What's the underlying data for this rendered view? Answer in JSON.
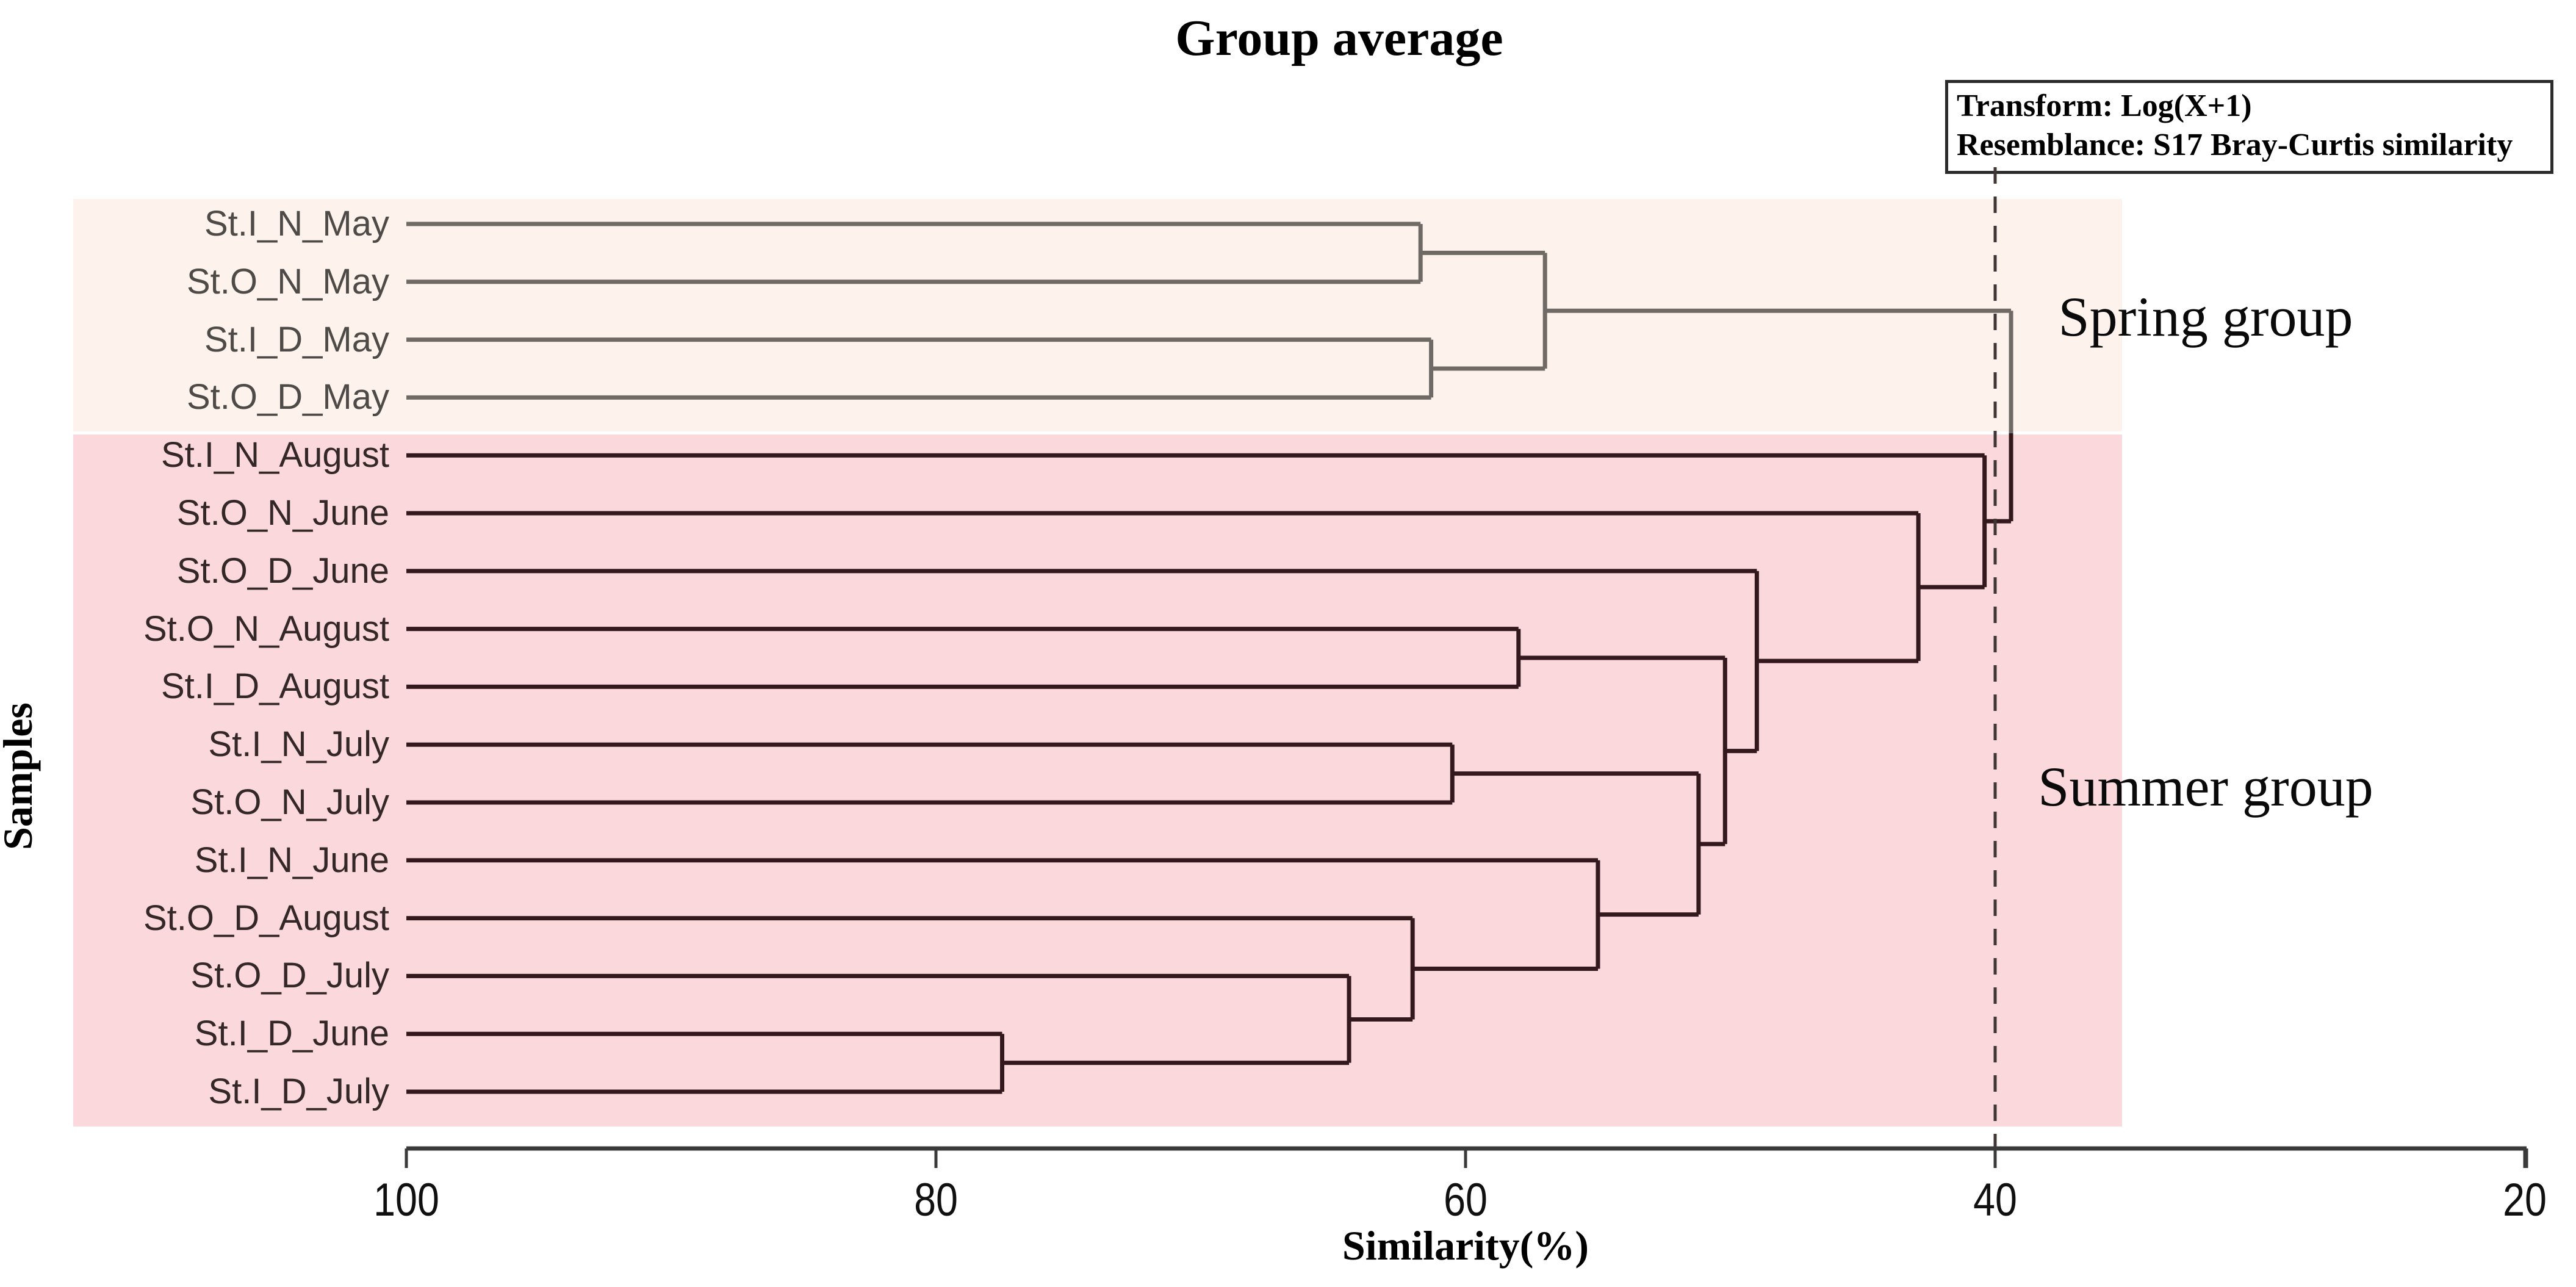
{
  "title": "Group average",
  "info_box": {
    "line1": "Transform: Log(X+1)",
    "line2": "Resemblance: S17 Bray-Curtis similarity"
  },
  "axes": {
    "x_label": "Similarity(%)",
    "y_label": "Samples"
  },
  "groups": {
    "spring": {
      "label": "Spring group",
      "band_color": "#fdf3ec",
      "line_color": "#6f6a66",
      "label_color": "#4e4a47"
    },
    "summer": {
      "label": "Summer group",
      "band_color": "#fbd8db",
      "line_color": "#33191d",
      "label_color": "#342727"
    }
  },
  "chart_data": {
    "type": "dendrogram",
    "orientation": "horizontal-right",
    "title": "Group average",
    "xlabel": "Similarity(%)",
    "ylabel": "Samples",
    "x_axis": {
      "ticks": [
        100,
        80,
        60,
        40,
        20
      ],
      "range": [
        100,
        20
      ],
      "color": "#3a3a3a"
    },
    "threshold_line": {
      "similarity": 40,
      "style": "dashed",
      "color": "#413636"
    },
    "leaves": [
      "St.I_N_May",
      "St.O_N_May",
      "St.I_D_May",
      "St.O_D_May",
      "St.I_N_August",
      "St.O_N_June",
      "St.O_D_June",
      "St.O_N_August",
      "St.I_D_August",
      "St.I_N_July",
      "St.O_N_July",
      "St.I_N_June",
      "St.O_D_August",
      "St.O_D_July",
      "St.I_D_June",
      "St.I_D_July"
    ],
    "merges": [
      {
        "cluster": "spring",
        "members": [
          "St.I_N_May",
          "St.O_N_May"
        ],
        "similarity": 61.7
      },
      {
        "cluster": "spring",
        "members": [
          "St.I_D_May",
          "St.O_D_May"
        ],
        "similarity": 61.3
      },
      {
        "cluster": "spring",
        "members": [
          "(St.I_N_May,St.O_N_May)",
          "(St.I_D_May,St.O_D_May)"
        ],
        "similarity": 57.0
      },
      {
        "cluster": "summer",
        "members": [
          "St.I_D_June",
          "St.I_D_July"
        ],
        "similarity": 77.5
      },
      {
        "cluster": "summer",
        "members": [
          "St.O_D_July",
          "(St.I_D_June,St.I_D_July)"
        ],
        "similarity": 64.4
      },
      {
        "cluster": "summer",
        "members": [
          "St.O_D_August",
          "prev"
        ],
        "similarity": 62.0
      },
      {
        "cluster": "summer",
        "members": [
          "St.I_N_June",
          "prev"
        ],
        "similarity": 55.0
      },
      {
        "cluster": "summer",
        "members": [
          "St.I_N_July",
          "St.O_N_July"
        ],
        "similarity": 60.5
      },
      {
        "cluster": "summer",
        "members": [
          "(St.I_N_July,St.O_N_July)",
          "prev"
        ],
        "similarity": 51.2
      },
      {
        "cluster": "summer",
        "members": [
          "St.O_N_August",
          "St.I_D_August"
        ],
        "similarity": 58.0
      },
      {
        "cluster": "summer",
        "members": [
          "(St.O_N_August,St.I_D_August)",
          "prev"
        ],
        "similarity": 50.2
      },
      {
        "cluster": "summer",
        "members": [
          "St.O_D_June",
          "prev"
        ],
        "similarity": 49.0
      },
      {
        "cluster": "summer",
        "members": [
          "St.O_N_June",
          "prev"
        ],
        "similarity": 42.9
      },
      {
        "cluster": "summer",
        "members": [
          "St.I_N_August",
          "prev"
        ],
        "similarity": 40.4
      },
      {
        "cluster": "root",
        "members": [
          "spring-group",
          "summer-group"
        ],
        "similarity": 39.4
      }
    ],
    "tree": {
      "sim": 39.4,
      "group": "root",
      "children": [
        {
          "sim": 57.0,
          "group": "spring",
          "children": [
            {
              "sim": 61.7,
              "group": "spring",
              "children": [
                {
                  "leaf": "St.I_N_May"
                },
                {
                  "leaf": "St.O_N_May"
                }
              ]
            },
            {
              "sim": 61.3,
              "group": "spring",
              "children": [
                {
                  "leaf": "St.I_D_May"
                },
                {
                  "leaf": "St.O_D_May"
                }
              ]
            }
          ]
        },
        {
          "sim": 40.4,
          "group": "summer",
          "children": [
            {
              "leaf": "St.I_N_August"
            },
            {
              "sim": 42.9,
              "group": "summer",
              "children": [
                {
                  "leaf": "St.O_N_June"
                },
                {
                  "sim": 49.0,
                  "group": "summer",
                  "children": [
                    {
                      "leaf": "St.O_D_June"
                    },
                    {
                      "sim": 50.2,
                      "group": "summer",
                      "children": [
                        {
                          "sim": 58.0,
                          "group": "summer",
                          "children": [
                            {
                              "leaf": "St.O_N_August"
                            },
                            {
                              "leaf": "St.I_D_August"
                            }
                          ]
                        },
                        {
                          "sim": 51.2,
                          "group": "summer",
                          "children": [
                            {
                              "sim": 60.5,
                              "group": "summer",
                              "children": [
                                {
                                  "leaf": "St.I_N_July"
                                },
                                {
                                  "leaf": "St.O_N_July"
                                }
                              ]
                            },
                            {
                              "sim": 55.0,
                              "group": "summer",
                              "children": [
                                {
                                  "leaf": "St.I_N_June"
                                },
                                {
                                  "sim": 62.0,
                                  "group": "summer",
                                  "children": [
                                    {
                                      "leaf": "St.O_D_August"
                                    },
                                    {
                                      "sim": 64.4,
                                      "group": "summer",
                                      "children": [
                                        {
                                          "leaf": "St.O_D_July"
                                        },
                                        {
                                          "sim": 77.5,
                                          "group": "summer",
                                          "children": [
                                            {
                                              "leaf": "St.I_D_June"
                                            },
                                            {
                                              "leaf": "St.I_D_July"
                                            }
                                          ]
                                        }
                                      ]
                                    }
                                  ]
                                }
                              ]
                            }
                          ]
                        }
                      ]
                    }
                  ]
                }
              ]
            }
          ]
        }
      ]
    }
  }
}
